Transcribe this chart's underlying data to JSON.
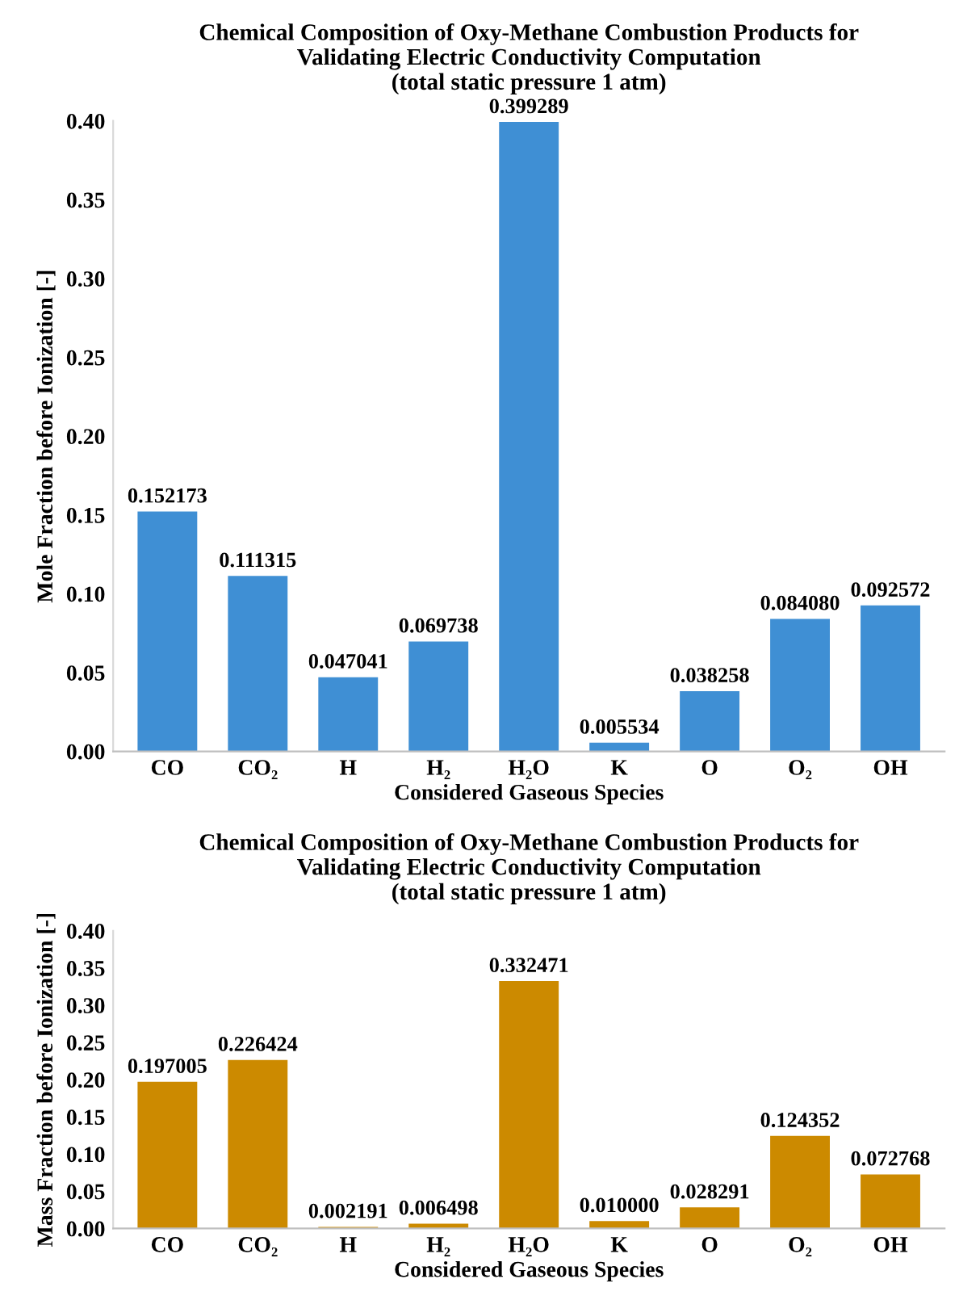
{
  "chart_data": [
    {
      "type": "bar",
      "title": "Chemical Composition of Oxy-Methane Combustion Products for\nValidating Electric Conductivity Computation\n(total static pressure 1 atm)",
      "xlabel": "Considered Gaseous Species",
      "ylabel": "Mole Fraction before Ionization [-]",
      "categories": [
        "CO",
        "CO₂",
        "H",
        "H₂",
        "H₂O",
        "K",
        "O",
        "O₂",
        "OH"
      ],
      "values": [
        0.152173,
        0.111315,
        0.047041,
        0.069738,
        0.399289,
        0.005534,
        0.038258,
        0.08408,
        0.092572
      ],
      "value_labels": [
        "0.152173",
        "0.111315",
        "0.047041",
        "0.069738",
        "0.399289",
        "0.005534",
        "0.038258",
        "0.084080",
        "0.092572"
      ],
      "color": "#3f8fd4",
      "ylim": [
        0,
        0.4
      ],
      "yticks": [
        {
          "value": 0,
          "label": "0.00"
        },
        {
          "value": 0.05,
          "label": "0.05"
        },
        {
          "value": 0.1,
          "label": "0.10"
        },
        {
          "value": 0.15,
          "label": "0.15"
        },
        {
          "value": 0.2,
          "label": "0.20"
        },
        {
          "value": 0.25,
          "label": "0.25"
        },
        {
          "value": 0.3,
          "label": "0.30"
        },
        {
          "value": 0.35,
          "label": "0.35"
        },
        {
          "value": 0.4,
          "label": "0.40"
        }
      ],
      "grid": false,
      "legend": false
    },
    {
      "type": "bar",
      "title": "Chemical Composition of Oxy-Methane Combustion Products for\nValidating Electric Conductivity Computation\n(total static pressure 1 atm)",
      "xlabel": "Considered Gaseous Species",
      "ylabel": "Mass Fraction before Ionization [-]",
      "categories": [
        "CO",
        "CO₂",
        "H",
        "H₂",
        "H₂O",
        "K",
        "O",
        "O₂",
        "OH"
      ],
      "values": [
        0.197005,
        0.226424,
        0.002191,
        0.006498,
        0.332471,
        0.01,
        0.028291,
        0.124352,
        0.072768
      ],
      "value_labels": [
        "0.197005",
        "0.226424",
        "0.002191",
        "0.006498",
        "0.332471",
        "0.010000",
        "0.028291",
        "0.124352",
        "0.072768"
      ],
      "color": "#cc8a00",
      "ylim": [
        0,
        0.4
      ],
      "yticks": [
        {
          "value": 0,
          "label": "0.00"
        },
        {
          "value": 0.05,
          "label": "0.05"
        },
        {
          "value": 0.1,
          "label": "0.10"
        },
        {
          "value": 0.15,
          "label": "0.15"
        },
        {
          "value": 0.2,
          "label": "0.20"
        },
        {
          "value": 0.25,
          "label": "0.25"
        },
        {
          "value": 0.3,
          "label": "0.30"
        },
        {
          "value": 0.35,
          "label": "0.35"
        },
        {
          "value": 0.4,
          "label": "0.40"
        }
      ],
      "grid": false,
      "legend": false
    }
  ]
}
